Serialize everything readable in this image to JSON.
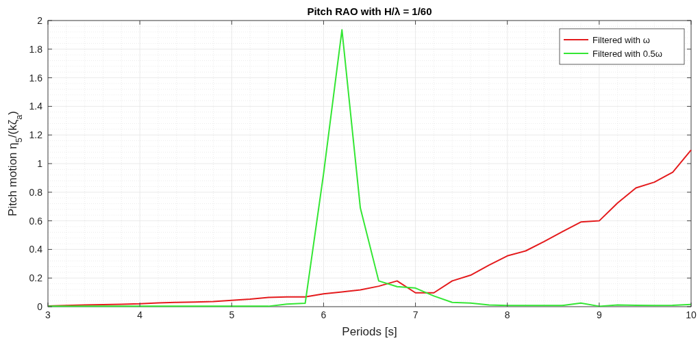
{
  "chart_data": {
    "type": "line",
    "title": "Pitch RAO with H/λ = 1/60",
    "xlabel": "Periods [s]",
    "ylabel": "Pitch motion η$_{5}$/(kζ$_{a}$)",
    "x": [
      3,
      3.2,
      3.4,
      3.6,
      3.8,
      4,
      4.2,
      4.4,
      4.6,
      4.8,
      5,
      5.2,
      5.4,
      5.6,
      5.8,
      6,
      6.2,
      6.4,
      6.6,
      6.8,
      7,
      7.2,
      7.4,
      7.6,
      7.8,
      8,
      8.2,
      8.4,
      8.6,
      8.8,
      9,
      9.2,
      9.4,
      9.6,
      9.8,
      10
    ],
    "series": [
      {
        "name": "Filtered with ω",
        "color": "#e41a1c",
        "values": [
          0.005,
          0.008,
          0.012,
          0.014,
          0.017,
          0.02,
          0.026,
          0.03,
          0.032,
          0.036,
          0.044,
          0.053,
          0.065,
          0.068,
          0.068,
          0.09,
          0.103,
          0.117,
          0.143,
          0.18,
          0.097,
          0.097,
          0.18,
          0.22,
          0.29,
          0.355,
          0.39,
          0.455,
          0.525,
          0.592,
          0.6,
          0.725,
          0.83,
          0.87,
          0.94,
          1.095
        ]
      },
      {
        "name": "Filtered with 0.5ω",
        "color": "#33e633",
        "values": [
          0.003,
          0.003,
          0.003,
          0.003,
          0.003,
          0.003,
          0.003,
          0.003,
          0.003,
          0.003,
          0.003,
          0.003,
          0.003,
          0.018,
          0.024,
          0.93,
          1.935,
          0.69,
          0.18,
          0.14,
          0.13,
          0.075,
          0.03,
          0.025,
          0.012,
          0.008,
          0.008,
          0.008,
          0.008,
          0.025,
          0.003,
          0.012,
          0.01,
          0.008,
          0.01,
          0.015
        ]
      }
    ],
    "xlim": [
      3,
      10
    ],
    "ylim": [
      0,
      2
    ],
    "xticks": [
      3,
      4,
      5,
      6,
      7,
      8,
      9,
      10
    ],
    "yticks": [
      0,
      0.2,
      0.4,
      0.6,
      0.8,
      1,
      1.2,
      1.4,
      1.6,
      1.8,
      2
    ],
    "grid": true,
    "legend": "top right",
    "marker": "none",
    "line_style": "solid"
  }
}
